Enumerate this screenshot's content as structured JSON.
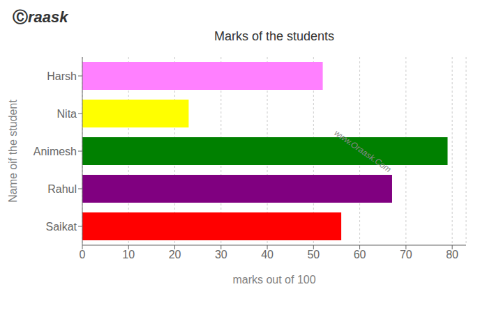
{
  "chart_data": {
    "type": "bar",
    "orientation": "horizontal",
    "title": "Marks of the students",
    "xlabel": "marks out of 100",
    "ylabel": "Name oif the student",
    "categories": [
      "Saikat",
      "Rahul",
      "Animesh",
      "Nita",
      "Harsh"
    ],
    "values": [
      56,
      67,
      79,
      23,
      52
    ],
    "colors": [
      "#ff0000",
      "#800080",
      "#008000",
      "#ffff00",
      "#ff80ff"
    ],
    "xlim": [
      0,
      83
    ],
    "xticks": [
      0,
      10,
      20,
      30,
      40,
      50,
      60,
      70,
      80
    ],
    "grid": true,
    "annotations": [
      "www.Oraask.Com",
      "Ⓒ",
      "raask"
    ]
  }
}
